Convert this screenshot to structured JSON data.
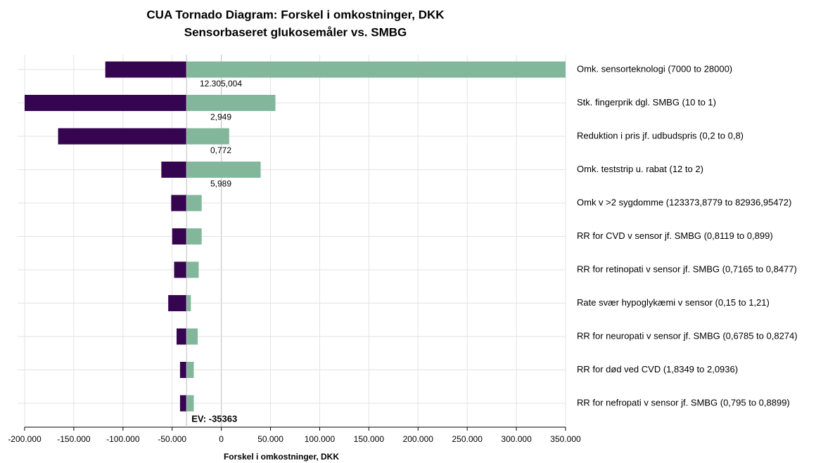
{
  "chart_data": {
    "type": "tornado",
    "title": [
      "CUA Tornado Diagram: Forskel i omkostninger, DKK",
      "Sensorbaseret glukosemåler vs. SMBG"
    ],
    "x_label": "Forskel i omkostninger, DKK",
    "categories": [
      "Omk. sensorteknologi (7000 to 28000)",
      "Stk. fingerprik dgl. SMBG (10 to 1)",
      "Reduktion i pris jf. udbudspris (0,2 to 0,8)",
      "Omk.  teststrip u. rabat (12 to 2)",
      "Omk v >2 sygdomme (123373,8779 to 82936,95472)",
      "RR for CVD v sensor jf. SMBG (0,8119 to 0,899)",
      "RR for retinopati v sensor jf. SMBG (0,7165 to 0,8477)",
      "Rate svær hypoglykæmi v sensor (0,15 to 1,21)",
      "RR for neuropati v sensor jf. SMBG (0,6785 to 0,8274)",
      "RR for død ved CVD (1,8349 to 2,0936)",
      "RR for nefropati v sensor jf. SMBG (0,795 to 0,8899)"
    ],
    "series": [
      {
        "color": "#35064f",
        "values": [
          -118000,
          -200000,
          -166000,
          -61000,
          -51000,
          -50000,
          -48000,
          -54000,
          -45500,
          -42000,
          -42000
        ]
      },
      {
        "color": "#82b79c",
        "values": [
          350000,
          55000,
          8000,
          40000,
          -20000,
          -20000,
          -23000,
          -31000,
          -24000,
          -28000,
          -28000
        ]
      }
    ],
    "break_even_labels": [
      "12.305,004",
      "2,949",
      "0,772",
      "5,989",
      null,
      null,
      null,
      null,
      null,
      null,
      null
    ],
    "ev": -35363,
    "ev_label": "EV: -35363",
    "xlim": [
      -200000,
      350000
    ],
    "xticks": [
      {
        "value": -200000,
        "label": "-200.000"
      },
      {
        "value": -150000,
        "label": "-150.000"
      },
      {
        "value": -100000,
        "label": "-100.000"
      },
      {
        "value": -50000,
        "label": "-50.000"
      },
      0,
      {
        "value": 50000,
        "label": "50.000"
      },
      {
        "value": 100000,
        "label": "100.000"
      },
      {
        "value": 150000,
        "label": "150.000"
      },
      {
        "value": 200000,
        "label": "200.000"
      },
      {
        "value": 250000,
        "label": "250.000"
      },
      {
        "value": 300000,
        "label": "300.000"
      },
      {
        "value": 350000,
        "label": "350.000"
      }
    ],
    "grid": true
  }
}
